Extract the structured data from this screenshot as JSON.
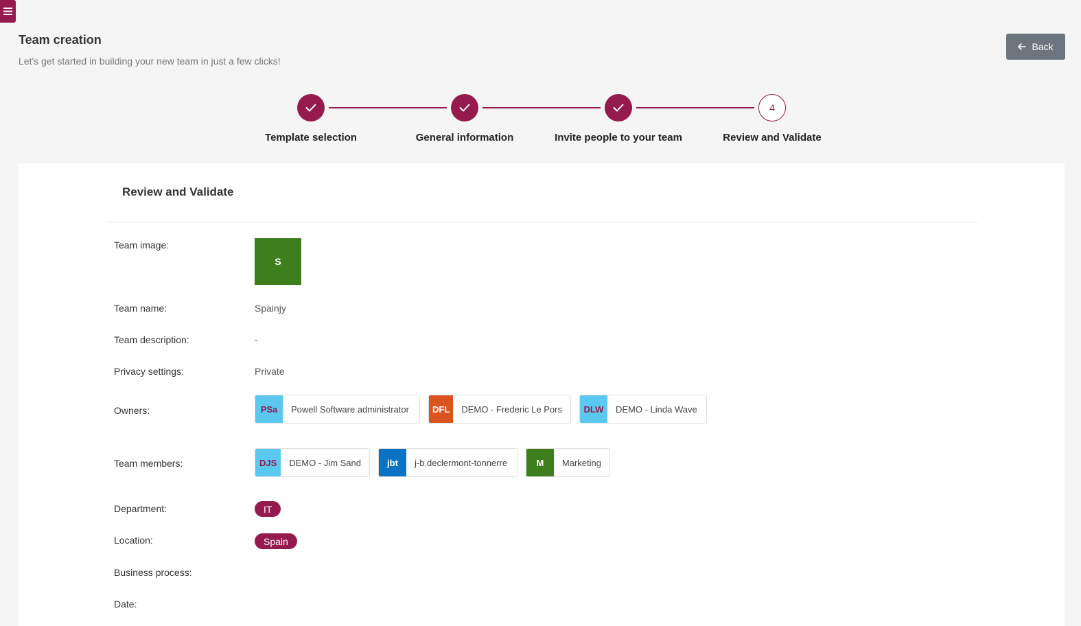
{
  "header": {
    "title": "Team creation",
    "subtitle": "Let's get started in building your new team in just a few clicks!",
    "back_label": "Back"
  },
  "steps": [
    {
      "label": "Template selection",
      "status": "done"
    },
    {
      "label": "General information",
      "status": "done"
    },
    {
      "label": "Invite people to your team",
      "status": "done"
    },
    {
      "label": "Review and Validate",
      "status": "current",
      "number": "4"
    }
  ],
  "review": {
    "title": "Review and Validate",
    "fields": {
      "team_image": {
        "label": "Team image:",
        "initial": "S"
      },
      "team_name": {
        "label": "Team name:",
        "value": "Spainjy"
      },
      "team_description": {
        "label": "Team description:",
        "value": "-"
      },
      "privacy": {
        "label": "Privacy settings:",
        "value": "Private"
      },
      "owners": {
        "label": "Owners:",
        "items": [
          {
            "initials": "PSa",
            "name": "Powell Software administrator",
            "bg": "#5bc8ef",
            "fg": "#951a4e"
          },
          {
            "initials": "DFL",
            "name": "DEMO - Frederic Le Pors",
            "bg": "#d9541e",
            "fg": "#ffffff"
          },
          {
            "initials": "DLW",
            "name": "DEMO - Linda Wave",
            "bg": "#5bc8ef",
            "fg": "#951a4e"
          }
        ]
      },
      "members": {
        "label": "Team members:",
        "items": [
          {
            "initials": "DJS",
            "name": "DEMO - Jim Sand",
            "bg": "#5bc8ef",
            "fg": "#951a4e"
          },
          {
            "initials": "jbt",
            "name": "j-b.declermont-tonnerre",
            "bg": "#0a73c6",
            "fg": "#ffffff"
          },
          {
            "initials": "M",
            "name": "Marketing",
            "bg": "#3f7e1c",
            "fg": "#ffffff"
          }
        ]
      },
      "department": {
        "label": "Department:",
        "tag": "IT"
      },
      "location": {
        "label": "Location:",
        "tag": "Spain"
      },
      "business_process": {
        "label": "Business process:"
      },
      "date": {
        "label": "Date:"
      }
    }
  },
  "colors": {
    "accent": "#951a4e",
    "back_button": "#6c757d"
  }
}
